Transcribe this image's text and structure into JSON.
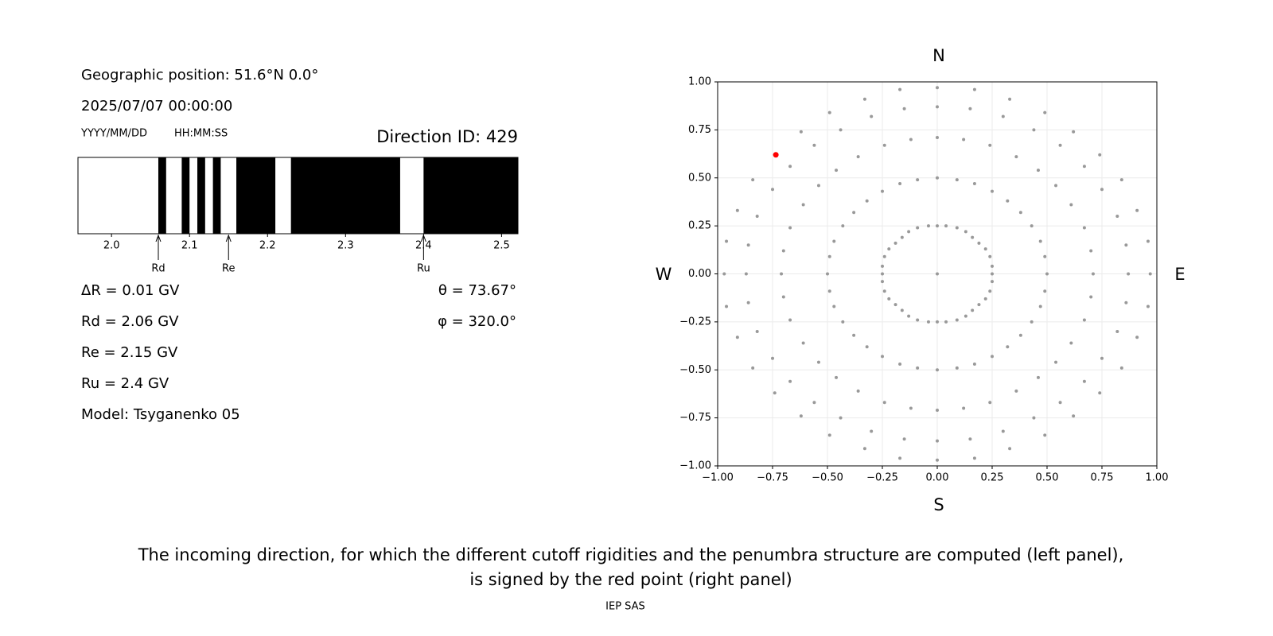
{
  "header": {
    "position": "Geographic position: 51.6°N 0.0°",
    "datetime": "2025/07/07 00:00:00",
    "date_format": "YYYY/MM/DD",
    "time_format": "HH:MM:SS",
    "direction": "Direction ID: 429"
  },
  "results": {
    "delta": "ΔR = 0.01 GV",
    "rd": "Rd = 2.06 GV",
    "re": "Re = 2.15 GV",
    "ru": "Ru = 2.4 GV",
    "model": "Model: Tsyganenko 05",
    "theta": "θ = 73.67°",
    "phi": "φ = 320.0°"
  },
  "chart_data": [
    {
      "type": "penumbra",
      "xlim": [
        1.957,
        2.521
      ],
      "xticks": [
        {
          "value": 2,
          "label": "2.0"
        },
        2.1,
        2.2,
        2.3,
        2.4,
        2.5
      ],
      "allowed": [
        [
          1.95,
          2.06
        ],
        [
          2.07,
          2.09
        ],
        [
          2.1,
          2.11
        ],
        [
          2.12,
          2.13
        ],
        [
          2.14,
          2.16
        ],
        [
          2.21,
          2.23
        ],
        [
          2.37,
          2.4
        ]
      ],
      "allowed_color": "#ffffff",
      "forbidden_color": "#000000",
      "markers": [
        {
          "label": "Rd",
          "value": 2.06
        },
        {
          "label": "Re",
          "value": 2.15
        },
        {
          "label": "Ru",
          "value": 2.4
        }
      ]
    },
    {
      "type": "scatter",
      "xlim": [
        -1,
        1
      ],
      "ylim": [
        -1,
        1
      ],
      "xticks": [
        {
          "value": -1,
          "label": "−1.00"
        },
        {
          "value": -0.75,
          "label": "−0.75"
        },
        {
          "value": -0.5,
          "label": "−0.50"
        },
        {
          "value": -0.25,
          "label": "−0.25"
        },
        {
          "value": 0,
          "label": "0.00"
        },
        {
          "value": 0.25,
          "label": "0.25"
        },
        {
          "value": 0.5,
          "label": "0.50"
        },
        {
          "value": 0.75,
          "label": "0.75"
        },
        {
          "value": 1,
          "label": "1.00"
        }
      ],
      "yticks": [
        {
          "value": -1,
          "label": "−1.00"
        },
        {
          "value": -0.75,
          "label": "−0.75"
        },
        {
          "value": -0.5,
          "label": "−0.50"
        },
        {
          "value": -0.25,
          "label": "−0.25"
        },
        {
          "value": 0,
          "label": "0.00"
        },
        {
          "value": 0.25,
          "label": "0.25"
        },
        {
          "value": 0.5,
          "label": "0.50"
        },
        {
          "value": 0.75,
          "label": "0.75"
        },
        {
          "value": 1,
          "label": "1.00"
        }
      ],
      "grid": true,
      "color": "#999999",
      "directions": {
        "top": "N",
        "bottom": "S",
        "left": "W",
        "right": "E"
      },
      "x": [
        0,
        0.25,
        0.25,
        0.24,
        0.22,
        0.19,
        0.16,
        0.13,
        0.09,
        0.04,
        0,
        -0.04,
        -0.09,
        -0.13,
        -0.16,
        -0.19,
        -0.22,
        -0.24,
        -0.25,
        -0.25,
        -0.25,
        -0.24,
        -0.22,
        -0.19,
        -0.16,
        -0.13,
        -0.09,
        -0.04,
        0,
        0.04,
        0.09,
        0.13,
        0.16,
        0.19,
        0.22,
        0.24,
        0.25,
        0.5,
        0.49,
        0.47,
        0.43,
        0.38,
        0.32,
        0.25,
        0.17,
        0.09,
        0,
        -0.09,
        -0.17,
        -0.25,
        -0.32,
        -0.38,
        -0.43,
        -0.47,
        -0.49,
        -0.5,
        -0.49,
        -0.47,
        -0.43,
        -0.38,
        -0.32,
        -0.25,
        -0.17,
        -0.09,
        0,
        0.09,
        0.17,
        0.25,
        0.32,
        0.38,
        0.43,
        0.47,
        0.49,
        0.71,
        0.7,
        0.67,
        0.61,
        0.54,
        0.46,
        0.36,
        0.24,
        0.12,
        0,
        -0.12,
        -0.24,
        -0.36,
        -0.46,
        -0.54,
        -0.61,
        -0.67,
        -0.7,
        -0.71,
        -0.7,
        -0.67,
        -0.61,
        -0.54,
        -0.46,
        -0.36,
        -0.24,
        -0.12,
        0,
        0.12,
        0.24,
        0.36,
        0.46,
        0.54,
        0.61,
        0.67,
        0.7,
        0.87,
        0.86,
        0.82,
        0.75,
        0.67,
        0.56,
        0.44,
        0.3,
        0.15,
        0,
        -0.15,
        -0.3,
        -0.44,
        -0.56,
        -0.67,
        -0.75,
        -0.82,
        -0.86,
        -0.87,
        -0.86,
        -0.82,
        -0.75,
        -0.67,
        -0.56,
        -0.44,
        -0.3,
        -0.15,
        0,
        0.15,
        0.3,
        0.44,
        0.56,
        0.67,
        0.75,
        0.82,
        0.86,
        0.97,
        0.96,
        0.91,
        0.84,
        0.74,
        0.62,
        0.49,
        0.33,
        0.17,
        0,
        -0.17,
        -0.33,
        -0.49,
        -0.62,
        -0.74,
        -0.84,
        -0.91,
        -0.96,
        -0.97,
        -0.96,
        -0.91,
        -0.84,
        -0.74,
        -0.62,
        -0.49,
        -0.33,
        -0.17,
        0,
        0.17,
        0.33,
        0.49,
        0.62,
        0.74,
        0.84,
        0.91,
        0.96
      ],
      "values": [
        0,
        0,
        0.04,
        0.09,
        0.13,
        0.16,
        0.19,
        0.22,
        0.24,
        0.25,
        0.25,
        0.25,
        0.24,
        0.22,
        0.19,
        0.16,
        0.13,
        0.09,
        0.04,
        0,
        -0.04,
        -0.09,
        -0.13,
        -0.16,
        -0.19,
        -0.22,
        -0.24,
        -0.25,
        -0.25,
        -0.25,
        -0.24,
        -0.22,
        -0.19,
        -0.16,
        -0.13,
        -0.09,
        -0.04,
        0,
        0.09,
        0.17,
        0.25,
        0.32,
        0.38,
        0.43,
        0.47,
        0.49,
        0.5,
        0.49,
        0.47,
        0.43,
        0.38,
        0.32,
        0.25,
        0.17,
        0.09,
        0,
        -0.09,
        -0.17,
        -0.25,
        -0.32,
        -0.38,
        -0.43,
        -0.47,
        -0.49,
        -0.5,
        -0.49,
        -0.47,
        -0.43,
        -0.38,
        -0.32,
        -0.25,
        -0.17,
        -0.09,
        0,
        0.12,
        0.24,
        0.36,
        0.46,
        0.54,
        0.61,
        0.67,
        0.7,
        0.71,
        0.7,
        0.67,
        0.61,
        0.54,
        0.46,
        0.36,
        0.24,
        0.12,
        0,
        -0.12,
        -0.24,
        -0.36,
        -0.46,
        -0.54,
        -0.61,
        -0.67,
        -0.7,
        -0.71,
        -0.7,
        -0.67,
        -0.61,
        -0.54,
        -0.46,
        -0.36,
        -0.24,
        -0.12,
        0,
        0.15,
        0.3,
        0.44,
        0.56,
        0.67,
        0.75,
        0.82,
        0.86,
        0.87,
        0.86,
        0.82,
        0.75,
        0.67,
        0.56,
        0.44,
        0.3,
        0.15,
        0,
        -0.15,
        -0.3,
        -0.44,
        -0.56,
        -0.67,
        -0.75,
        -0.82,
        -0.86,
        -0.87,
        -0.86,
        -0.82,
        -0.75,
        -0.67,
        -0.56,
        -0.44,
        -0.3,
        -0.15,
        0,
        0.17,
        0.33,
        0.49,
        0.62,
        0.74,
        0.84,
        0.91,
        0.96,
        0.97,
        0.96,
        0.91,
        0.84,
        0.74,
        0.62,
        0.49,
        0.33,
        0.17,
        0,
        -0.17,
        -0.33,
        -0.49,
        -0.62,
        -0.74,
        -0.84,
        -0.91,
        -0.96,
        -0.97,
        -0.96,
        -0.91,
        -0.84,
        -0.74,
        -0.62,
        -0.49,
        -0.33,
        -0.17
      ],
      "highlight": {
        "x": -0.735,
        "y": 0.62,
        "color": "#ff0000"
      }
    }
  ],
  "caption": [
    "The incoming direction, for which the different cutoff rigidities and the penumbra structure are computed (left panel),",
    "is signed by the red point (right panel)"
  ],
  "footer": "IEP SAS"
}
